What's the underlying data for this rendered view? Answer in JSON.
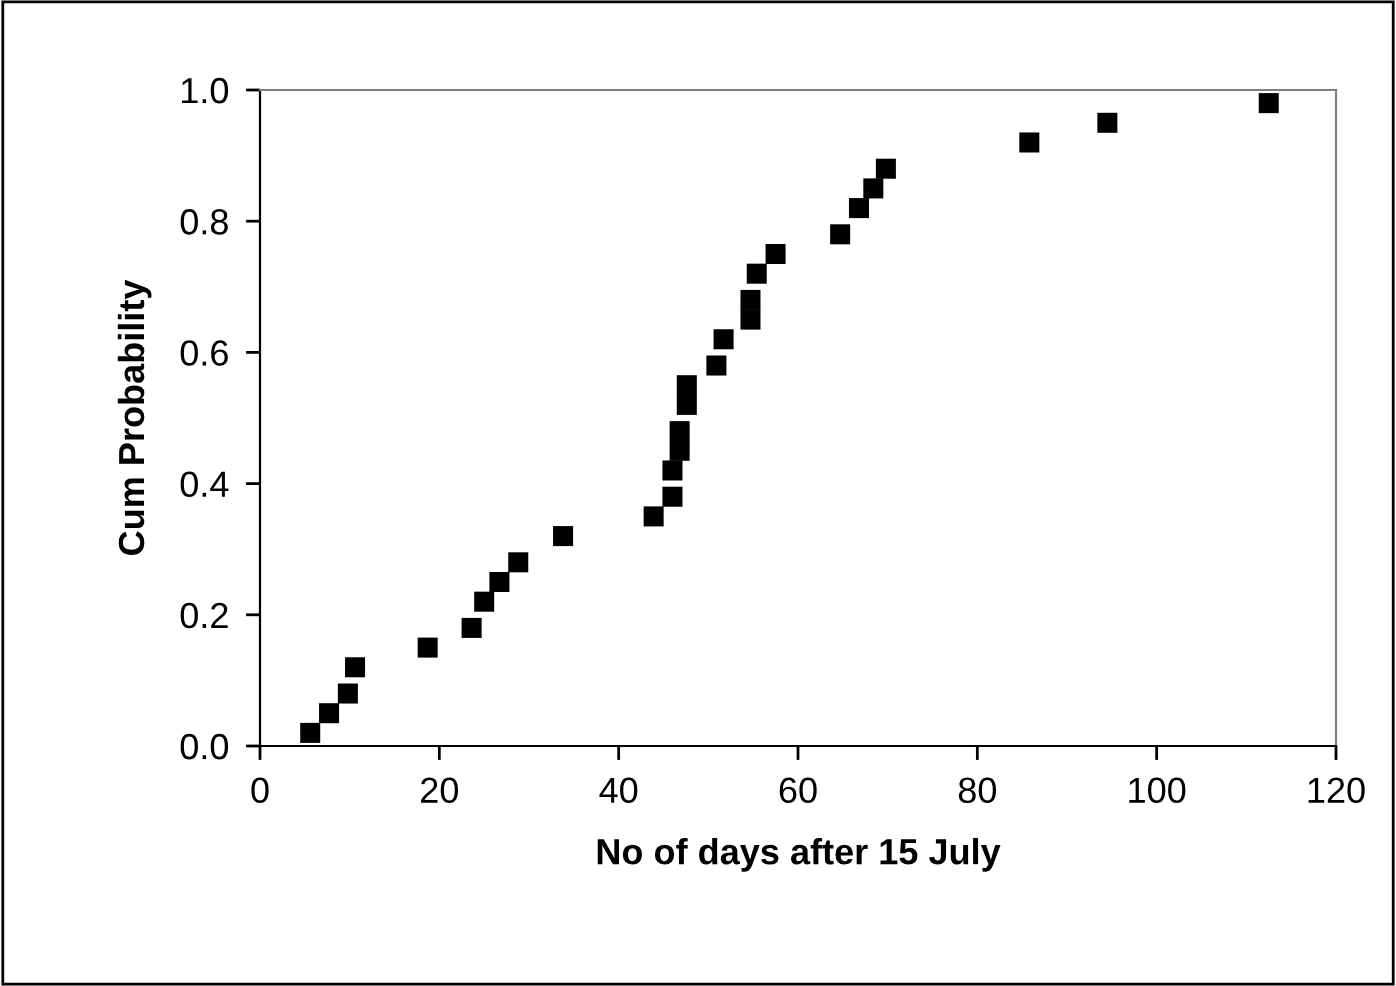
{
  "chart_data": {
    "type": "scatter",
    "xlabel": "No of days after 15 July",
    "ylabel": "Cum Probability",
    "series": [
      {
        "color": "#000000",
        "x": [
          5.6,
          7.7,
          9.8,
          10.6,
          18.7,
          23.6,
          25,
          26.7,
          28.8,
          33.8,
          43.9,
          46,
          46,
          46.8,
          46.8,
          47.6,
          47.6,
          50.9,
          51.7,
          54.7,
          54.7,
          55.4,
          57.5,
          64.7,
          66.8,
          68.4,
          69.8,
          85.8,
          94.5,
          112.5
        ],
        "values": [
          0.02,
          0.05,
          0.08,
          0.12,
          0.15,
          0.18,
          0.22,
          0.25,
          0.28,
          0.32,
          0.35,
          0.38,
          0.42,
          0.45,
          0.48,
          0.52,
          0.55,
          0.58,
          0.62,
          0.65,
          0.68,
          0.72,
          0.75,
          0.78,
          0.82,
          0.85,
          0.88,
          0.92,
          0.95,
          0.98
        ]
      }
    ],
    "marker": "square",
    "xlim": [
      0,
      120
    ],
    "xticks": [
      0,
      20,
      40,
      60,
      80,
      100,
      120
    ],
    "ylim": [
      0,
      1.0
    ],
    "yticks": [
      {
        "value": 0,
        "label": "0.0"
      },
      {
        "value": 0.2,
        "label": "0.2"
      },
      {
        "value": 0.4,
        "label": "0.4"
      },
      {
        "value": 0.6,
        "label": "0.6"
      },
      {
        "value": 0.8,
        "label": "0.8"
      },
      {
        "value": 1.0,
        "label": "1.0"
      }
    ],
    "grid": false
  }
}
